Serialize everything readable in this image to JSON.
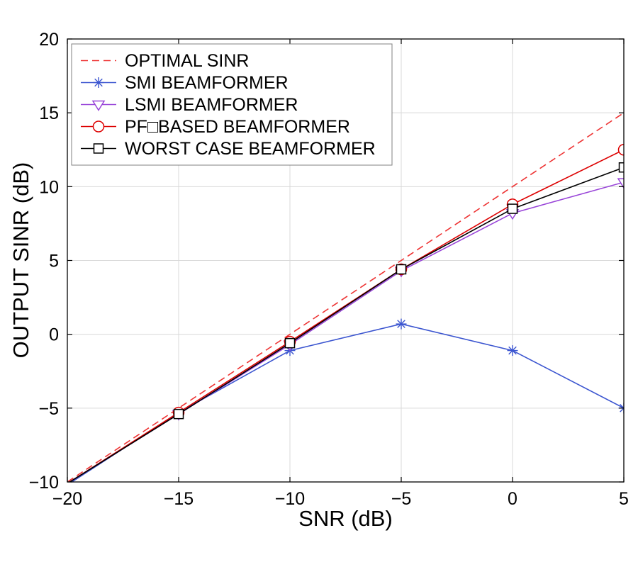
{
  "chart_data": {
    "type": "line",
    "title": "",
    "xlabel": "SNR (dB)",
    "ylabel": "OUTPUT SINR (dB)",
    "xlim": [
      -20,
      5
    ],
    "ylim": [
      -10,
      20
    ],
    "xticks": [
      -20,
      -15,
      -10,
      -5,
      0,
      5
    ],
    "yticks": [
      -10,
      -5,
      0,
      5,
      10,
      15,
      20
    ],
    "grid": true,
    "legend_position": "top-left",
    "marker_skip_first": true,
    "x": [
      -20,
      -15,
      -10,
      -5,
      0,
      5
    ],
    "series": [
      {
        "name": "OPTIMAL SINR",
        "color": "#ee3333",
        "dash": "dashed",
        "marker": "none",
        "values": [
          -10.0,
          -5.0,
          0.0,
          5.0,
          10.0,
          15.0
        ]
      },
      {
        "name": "SMI BEAMFORMER",
        "color": "#3b55d0",
        "dash": "solid",
        "marker": "asterisk",
        "values": [
          -10.2,
          -5.3,
          -1.1,
          0.7,
          -1.1,
          -5.0
        ]
      },
      {
        "name": "LSMI BEAMFORMER",
        "color": "#9843d8",
        "dash": "solid",
        "marker": "triangle-down",
        "values": [
          -10.1,
          -5.4,
          -0.7,
          4.3,
          8.2,
          10.3
        ]
      },
      {
        "name": "PF□BASED BEAMFORMER",
        "color": "#dd0000",
        "dash": "solid",
        "marker": "circle",
        "values": [
          -10.1,
          -5.3,
          -0.5,
          4.4,
          8.8,
          12.5
        ]
      },
      {
        "name": "WORST CASE BEAMFORMER",
        "color": "#000000",
        "dash": "solid",
        "marker": "square",
        "values": [
          -10.1,
          -5.4,
          -0.6,
          4.4,
          8.5,
          11.3
        ]
      }
    ],
    "colors": {
      "background": "#ffffff",
      "grid": "#d9d9d9",
      "axis": "#000000",
      "legend_border": "#808080",
      "legend_background": "#ffffff"
    }
  }
}
